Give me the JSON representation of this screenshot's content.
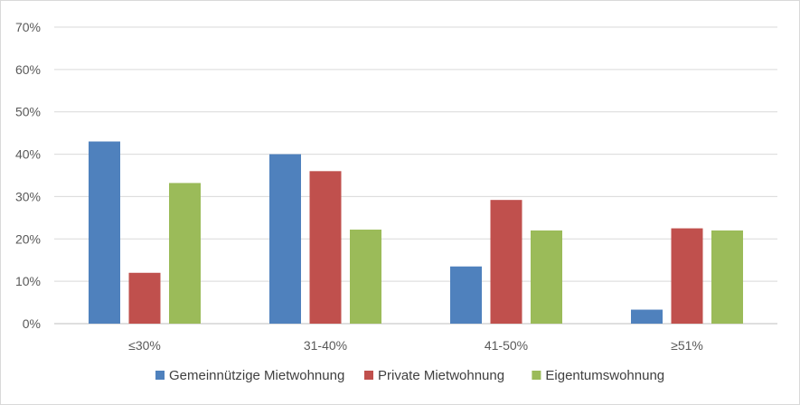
{
  "chart_data": {
    "type": "bar",
    "categories": [
      "≤30%",
      "31-40%",
      "41-50%",
      "≥51%"
    ],
    "series": [
      {
        "name": "Gemeinnützige Mietwohnung",
        "color": "#4f81bd",
        "values": [
          43,
          40,
          13.5,
          3.3
        ]
      },
      {
        "name": "Private Mietwohnung",
        "color": "#c0504d",
        "values": [
          12,
          36,
          29.2,
          22.5
        ]
      },
      {
        "name": "Eigentumswohnung",
        "color": "#9bbb59",
        "values": [
          33.2,
          22.2,
          22,
          22
        ]
      }
    ],
    "y_ticks": [
      "0%",
      "10%",
      "20%",
      "30%",
      "40%",
      "50%",
      "60%",
      "70%"
    ],
    "ylim": [
      0,
      70
    ],
    "grid": true,
    "legend": "bottom-center",
    "title": "",
    "xlabel": "",
    "ylabel": ""
  }
}
